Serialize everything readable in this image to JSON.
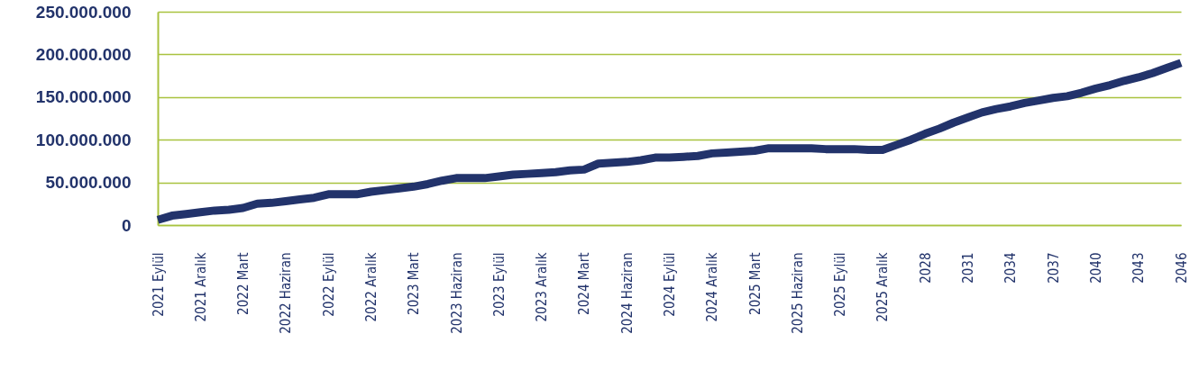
{
  "chart_data": {
    "type": "line",
    "categories": [
      "2021 Eylül",
      null,
      null,
      "2021 Aralık",
      null,
      null,
      "2022 Mart",
      null,
      null,
      "2022 Haziran",
      null,
      null,
      "2022 Eylül",
      null,
      null,
      "2022 Aralık",
      null,
      null,
      "2023 Mart",
      null,
      null,
      "2023 Haziran",
      null,
      null,
      "2023 Eylül",
      null,
      null,
      "2023 Aralık",
      null,
      null,
      "2024 Mart",
      null,
      null,
      "2024 Haziran",
      null,
      null,
      "2024 Eylül",
      null,
      null,
      "2024 Aralık",
      null,
      null,
      "2025 Mart",
      null,
      null,
      "2025 Haziran",
      null,
      null,
      "2025 Eylül",
      null,
      null,
      "2025 Aralık",
      null,
      null,
      "2028",
      null,
      null,
      "2031",
      null,
      null,
      "2034",
      null,
      null,
      "2037",
      null,
      null,
      "2040",
      null,
      null,
      "2043",
      null,
      null,
      "2046"
    ],
    "series": [
      {
        "color": "#22336b",
        "values": [
          6000000,
          11000000,
          13000000,
          15000000,
          17000000,
          18000000,
          20000000,
          25000000,
          26000000,
          28000000,
          30000000,
          32000000,
          36000000,
          36000000,
          36000000,
          39000000,
          41000000,
          43000000,
          45000000,
          48000000,
          52000000,
          55000000,
          55000000,
          55000000,
          57000000,
          59000000,
          60000000,
          61000000,
          62000000,
          64000000,
          65000000,
          72000000,
          73000000,
          74000000,
          76000000,
          79000000,
          79000000,
          80000000,
          81000000,
          84000000,
          85000000,
          86000000,
          87000000,
          90000000,
          90000000,
          90000000,
          90000000,
          89000000,
          89000000,
          89000000,
          88000000,
          88000000,
          94000000,
          100000000,
          107000000,
          113000000,
          120000000,
          126000000,
          132000000,
          136000000,
          139000000,
          143000000,
          146000000,
          149000000,
          151000000,
          155000000,
          160000000,
          164000000,
          169000000,
          173000000,
          178000000,
          184000000,
          190000000
        ]
      }
    ],
    "ylim": [
      0,
      250000000
    ],
    "yticks": [
      0,
      {
        "value": 50000000,
        "label": "50.000.000"
      },
      {
        "value": 100000000,
        "label": "100.000.000"
      },
      {
        "value": 150000000,
        "label": "150.000.000"
      },
      {
        "value": 200000000,
        "label": "200.000.000"
      },
      {
        "value": 250000000,
        "label": "250.000.000"
      }
    ],
    "grid": "y"
  }
}
